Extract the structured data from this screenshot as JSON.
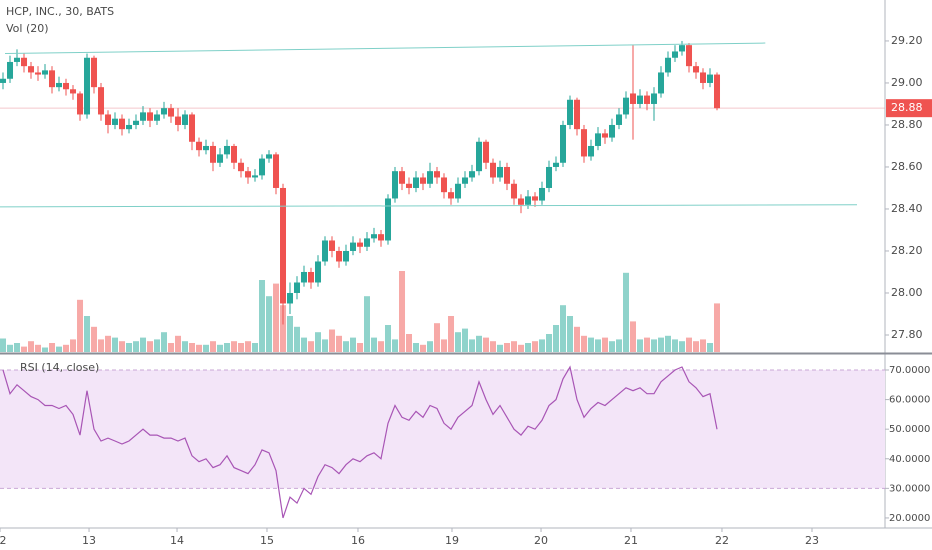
{
  "chart_data": [
    {
      "type": "candlestick",
      "title": "HCP, INC., 30, BATS",
      "open": [
        29.0,
        29.02,
        29.1,
        29.12,
        29.08,
        29.05,
        29.04,
        29.06,
        28.98,
        29.0,
        28.97,
        28.95,
        28.85,
        29.12,
        28.98,
        28.85,
        28.8,
        28.83,
        28.78,
        28.8,
        28.82,
        28.86,
        28.82,
        28.85,
        28.88,
        28.84,
        28.8,
        28.85,
        28.72,
        28.68,
        28.7,
        28.62,
        28.66,
        28.7,
        28.62,
        28.58,
        28.55,
        28.56,
        28.64,
        28.66,
        28.5,
        27.95,
        28.0,
        28.05,
        28.1,
        28.05,
        28.15,
        28.25,
        28.2,
        28.15,
        28.2,
        28.24,
        28.22,
        28.26,
        28.28,
        28.25,
        28.45,
        28.58,
        28.52,
        28.5,
        28.55,
        28.52,
        28.58,
        28.55,
        28.48,
        28.45,
        28.52,
        28.55,
        28.58,
        28.72,
        28.62,
        28.55,
        28.6,
        28.52,
        28.45,
        28.42,
        28.46,
        28.44,
        28.5,
        28.6,
        28.62,
        28.8,
        28.92,
        28.78,
        28.65,
        28.7,
        28.76,
        28.74,
        28.8,
        28.85,
        28.95,
        28.9,
        28.94,
        28.9,
        28.95,
        29.05,
        29.12,
        29.15,
        29.18,
        29.08,
        29.05,
        29.0,
        29.04
      ],
      "high": [
        29.05,
        29.13,
        29.16,
        29.14,
        29.1,
        29.08,
        29.09,
        29.08,
        29.03,
        29.02,
        28.99,
        28.96,
        29.14,
        29.13,
        29.0,
        28.87,
        28.86,
        28.85,
        28.83,
        28.85,
        28.89,
        28.88,
        28.87,
        28.91,
        28.9,
        28.88,
        28.87,
        28.86,
        28.74,
        28.73,
        28.72,
        28.69,
        28.73,
        28.71,
        28.64,
        28.6,
        28.59,
        28.66,
        28.68,
        28.67,
        28.52,
        28.05,
        28.08,
        28.13,
        28.12,
        28.18,
        28.27,
        28.27,
        28.22,
        28.23,
        28.27,
        28.26,
        28.29,
        28.31,
        28.3,
        28.47,
        28.6,
        28.6,
        28.55,
        28.58,
        28.57,
        28.62,
        28.6,
        28.57,
        28.5,
        28.55,
        28.58,
        28.61,
        28.74,
        28.73,
        28.64,
        28.63,
        28.62,
        28.54,
        28.47,
        28.49,
        28.48,
        28.53,
        28.63,
        28.65,
        28.82,
        28.94,
        28.93,
        28.8,
        28.73,
        28.79,
        28.78,
        28.83,
        28.88,
        28.96,
        29.18,
        28.97,
        28.96,
        28.98,
        29.08,
        29.15,
        29.18,
        29.2,
        29.19,
        29.1,
        29.07,
        29.07,
        29.05
      ],
      "low": [
        28.97,
        29.0,
        29.08,
        29.05,
        29.02,
        29.01,
        29.02,
        28.95,
        28.96,
        28.94,
        28.92,
        28.82,
        28.83,
        28.95,
        28.82,
        28.76,
        28.78,
        28.75,
        28.76,
        28.78,
        28.8,
        28.79,
        28.8,
        28.83,
        28.81,
        28.77,
        28.78,
        28.68,
        28.65,
        28.66,
        28.58,
        28.6,
        28.64,
        28.59,
        28.55,
        28.52,
        28.53,
        28.54,
        28.62,
        28.47,
        27.85,
        27.9,
        27.97,
        28.03,
        28.02,
        28.03,
        28.13,
        28.17,
        28.12,
        28.13,
        28.18,
        28.19,
        28.2,
        28.24,
        28.22,
        28.23,
        28.43,
        28.49,
        28.47,
        28.48,
        28.49,
        28.5,
        28.52,
        28.45,
        28.42,
        28.43,
        28.5,
        28.53,
        28.56,
        28.59,
        28.52,
        28.53,
        28.49,
        28.42,
        28.38,
        28.4,
        28.41,
        28.42,
        28.48,
        28.58,
        28.6,
        28.78,
        28.75,
        28.62,
        28.63,
        28.68,
        28.71,
        28.72,
        28.78,
        28.83,
        28.73,
        28.88,
        28.87,
        28.82,
        28.93,
        29.03,
        29.1,
        29.13,
        29.05,
        29.02,
        28.97,
        28.98,
        28.87
      ],
      "close": [
        29.02,
        29.1,
        29.12,
        29.08,
        29.05,
        29.04,
        29.06,
        28.98,
        29.0,
        28.97,
        28.95,
        28.85,
        29.12,
        28.98,
        28.85,
        28.8,
        28.83,
        28.78,
        28.8,
        28.82,
        28.86,
        28.82,
        28.85,
        28.88,
        28.84,
        28.8,
        28.85,
        28.72,
        28.68,
        28.7,
        28.62,
        28.66,
        28.7,
        28.62,
        28.58,
        28.55,
        28.56,
        28.64,
        28.66,
        28.5,
        27.95,
        28.0,
        28.05,
        28.1,
        28.05,
        28.15,
        28.25,
        28.2,
        28.15,
        28.2,
        28.24,
        28.22,
        28.26,
        28.28,
        28.25,
        28.45,
        28.58,
        28.52,
        28.5,
        28.55,
        28.52,
        28.58,
        28.55,
        28.48,
        28.45,
        28.52,
        28.55,
        28.58,
        28.72,
        28.62,
        28.55,
        28.6,
        28.52,
        28.45,
        28.42,
        28.46,
        28.44,
        28.5,
        28.6,
        28.62,
        28.8,
        28.92,
        28.78,
        28.65,
        28.7,
        28.76,
        28.74,
        28.8,
        28.85,
        28.93,
        28.9,
        28.94,
        28.9,
        28.95,
        29.05,
        29.12,
        29.15,
        29.18,
        29.08,
        29.05,
        29.0,
        29.04,
        28.88
      ],
      "up_color": "#26a69a",
      "down_color": "#ef5350",
      "xlim": [
        -0.43,
        126
      ],
      "xticks": [
        {
          "value": -0.43,
          "label": "2"
        },
        {
          "value": 12.29,
          "label": "13"
        },
        {
          "value": 24.86,
          "label": "14"
        },
        {
          "value": 37.71,
          "label": "15"
        },
        {
          "value": 50.71,
          "label": "16"
        },
        {
          "value": 64.14,
          "label": "19"
        },
        {
          "value": 76.86,
          "label": "20"
        },
        {
          "value": 89.71,
          "label": "21"
        },
        {
          "value": 102.71,
          "label": "22"
        },
        {
          "value": 115.57,
          "label": "23"
        }
      ],
      "ylim": [
        27.719,
        29.395
      ],
      "yticks": [
        {
          "value": 29.2,
          "label": "29.20"
        },
        {
          "value": 29.0,
          "label": "29.00"
        },
        {
          "value": 28.8,
          "label": "28.80"
        },
        {
          "value": 28.6,
          "label": "28.60"
        },
        {
          "value": 28.4,
          "label": "28.40"
        },
        {
          "value": 28.2,
          "label": "28.20"
        },
        {
          "value": 28.0,
          "label": "28.00"
        },
        {
          "value": 27.8,
          "label": "27.80"
        }
      ],
      "last_price": 28.88,
      "last_price_color": "#ef5350",
      "trendlines": [
        {
          "x": [
            0.29,
            108.9
          ],
          "y": [
            29.14,
            29.19
          ],
          "color": "#7fd0c8"
        },
        {
          "x": [
            -0.43,
            122
          ],
          "y": [
            28.41,
            28.42
          ],
          "color": "#7fd0c8"
        }
      ],
      "volume": {
        "title": "Vol (20)",
        "ylim": [
          0,
          100
        ],
        "up_color": "#8fd3cb",
        "down_color": "#f7a9a7",
        "values": [
          15,
          8,
          10,
          6,
          12,
          8,
          5,
          10,
          6,
          8,
          14,
          58,
          40,
          28,
          14,
          18,
          16,
          12,
          10,
          12,
          16,
          12,
          14,
          22,
          10,
          18,
          12,
          10,
          8,
          8,
          12,
          8,
          10,
          12,
          10,
          12,
          10,
          80,
          62,
          76,
          52,
          40,
          28,
          16,
          12,
          22,
          14,
          25,
          18,
          12,
          16,
          10,
          62,
          16,
          12,
          30,
          14,
          90,
          20,
          10,
          8,
          12,
          32,
          14,
          40,
          22,
          26,
          14,
          18,
          16,
          12,
          8,
          10,
          12,
          8,
          10,
          12,
          14,
          20,
          30,
          52,
          40,
          28,
          18,
          16,
          14,
          16,
          12,
          14,
          88,
          34,
          14,
          16,
          14,
          16,
          18,
          14,
          12,
          16,
          12,
          14,
          10,
          54
        ]
      }
    },
    {
      "type": "line",
      "title": "RSI (14, close)",
      "color": "#a855b5",
      "band": [
        30,
        70
      ],
      "band_color": "#f3e5f8",
      "values": [
        70,
        62,
        65,
        63,
        61,
        60,
        58,
        58,
        57,
        58,
        55,
        48,
        63,
        50,
        46,
        47,
        46,
        45,
        46,
        48,
        50,
        48,
        48,
        47,
        47,
        46,
        47,
        41,
        39,
        40,
        37,
        38,
        41,
        37,
        36,
        35,
        38,
        43,
        42,
        36,
        20,
        27,
        25,
        30,
        28,
        34,
        38,
        37,
        35,
        38,
        40,
        39,
        41,
        42,
        40,
        52,
        58,
        54,
        53,
        56,
        54,
        58,
        57,
        52,
        50,
        54,
        56,
        58,
        66,
        60,
        55,
        58,
        54,
        50,
        48,
        51,
        50,
        53,
        58,
        60,
        67,
        71,
        60,
        54,
        57,
        59,
        58,
        60,
        62,
        64,
        63,
        64,
        62,
        62,
        66,
        68,
        70,
        71,
        66,
        64,
        61,
        62,
        50
      ],
      "ylim": [
        16.6,
        75.07
      ],
      "yticks": [
        {
          "value": 70,
          "label": "70.0000"
        },
        {
          "value": 60,
          "label": "60.0000"
        },
        {
          "value": 50,
          "label": "50.0000"
        },
        {
          "value": 40,
          "label": "40.0000"
        },
        {
          "value": 30,
          "label": "30.0000"
        },
        {
          "value": 20,
          "label": "20.0000"
        }
      ]
    }
  ]
}
